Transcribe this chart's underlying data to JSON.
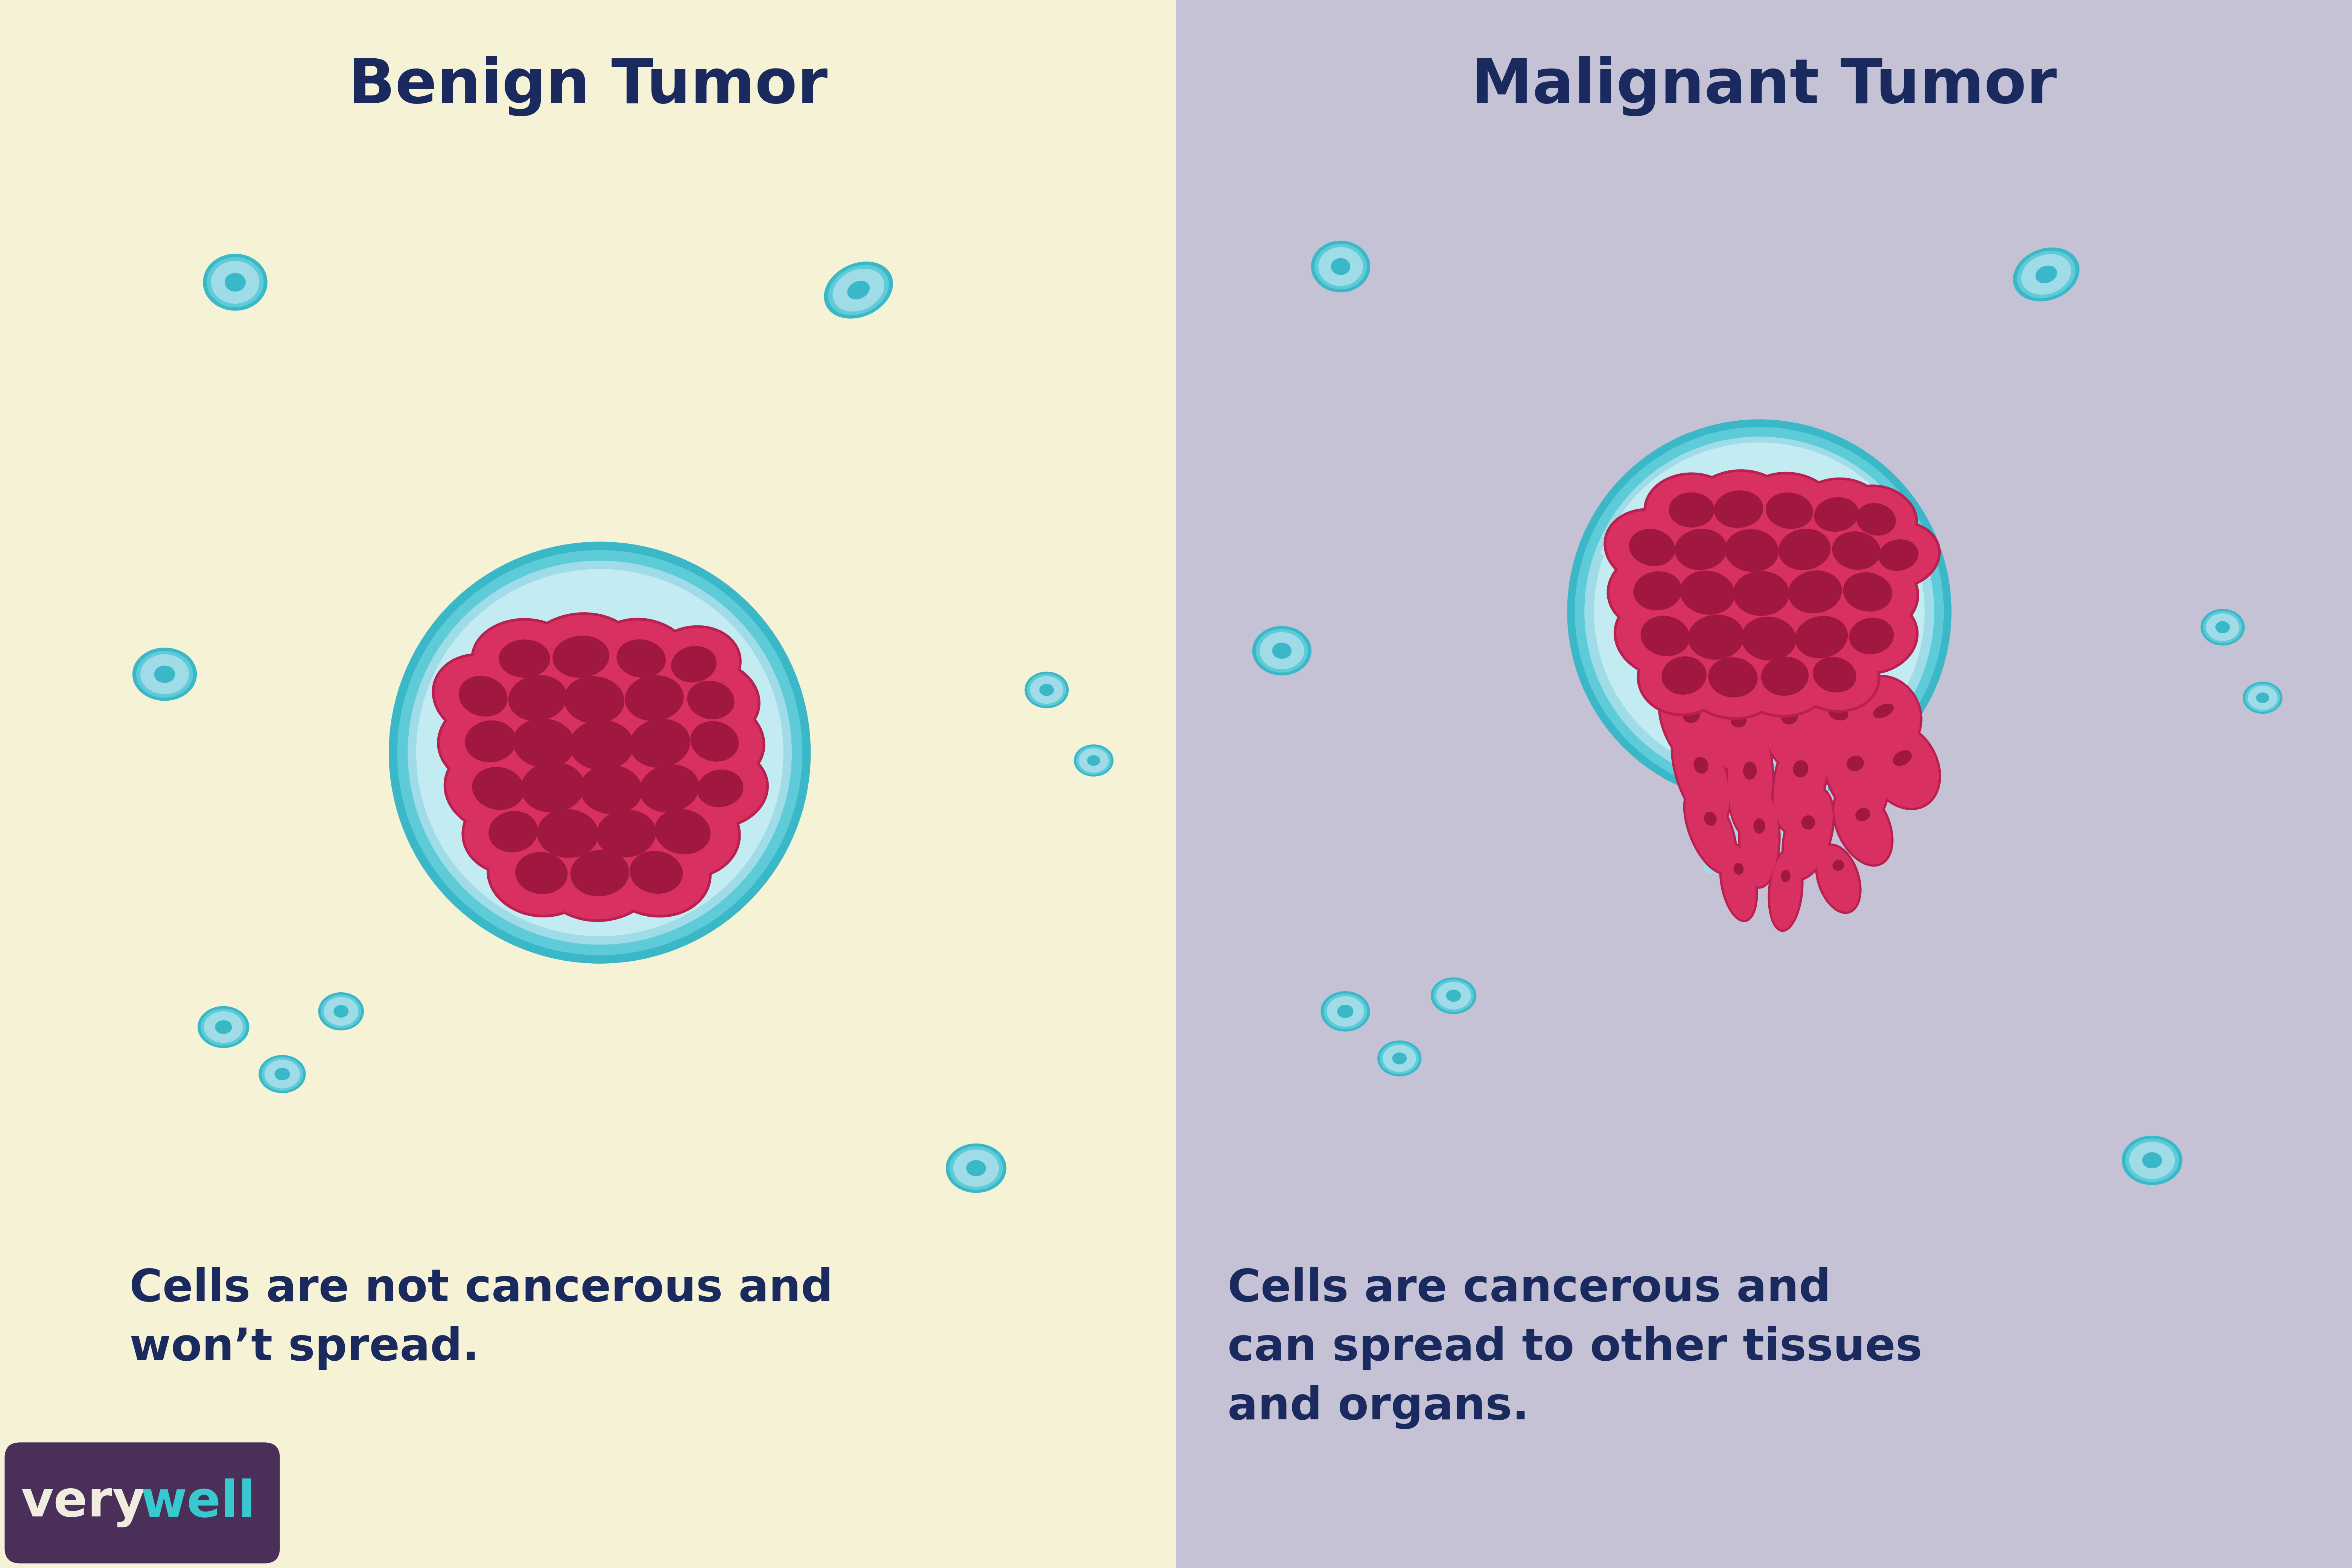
{
  "left_bg": "#f5f2d5",
  "right_bg": "#c5c2d5",
  "left_title": "Benign Tumor",
  "right_title": "Malignant Tumor",
  "title_color": "#1a2a5e",
  "title_fontsize": 118,
  "left_caption": "Cells are not cancerous and\nwon’t spread.",
  "right_caption": "Cells are cancerous and\ncan spread to other tissues\nand organs.",
  "caption_fontsize": 86,
  "caption_color": "#1a2a5e",
  "cell_teal_dark": "#3bb8c8",
  "cell_teal_mid": "#5eccd8",
  "cell_teal_light": "#a0dce8",
  "cell_teal_pale": "#c2ebf2",
  "cell_red": "#d83060",
  "cell_red_dark": "#a01840",
  "cell_red_outline": "#b82050",
  "verywell_bg": "#4a3058",
  "verywell_text_white": "#f0ede0",
  "verywell_text_cyan": "#38c8d0"
}
